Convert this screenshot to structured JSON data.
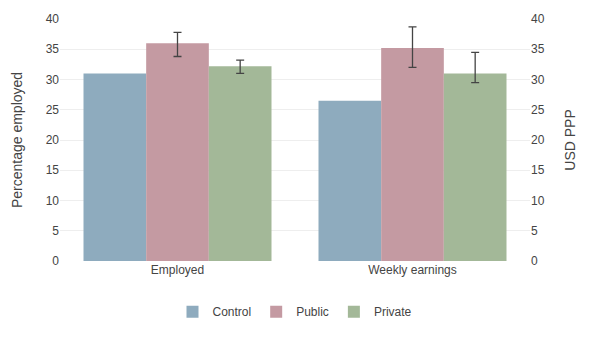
{
  "chart_data": {
    "type": "bar",
    "categories": [
      "Employed",
      "Weekly earnings"
    ],
    "series": [
      {
        "name": "Control",
        "color": "#8eabbe",
        "values": [
          31.0,
          26.5
        ]
      },
      {
        "name": "Public",
        "color": "#c49aa2",
        "values": [
          36.0,
          35.2
        ],
        "error_low": [
          2.2,
          3.2
        ],
        "error_high": [
          1.8,
          3.5
        ]
      },
      {
        "name": "Private",
        "color": "#a3b898",
        "values": [
          32.2,
          31.0
        ],
        "error_low": [
          1.2,
          1.5
        ],
        "error_high": [
          1.0,
          3.5
        ]
      }
    ],
    "ylabel": "Percentage employed",
    "y2label": "USD PPP",
    "ylim": [
      0,
      40
    ],
    "yticks": [
      0,
      5,
      10,
      15,
      20,
      25,
      30,
      35,
      40
    ],
    "y2lim": [
      0,
      40
    ],
    "y2ticks": [
      0,
      5,
      10,
      15,
      20,
      25,
      30,
      35,
      40
    ],
    "grid": true,
    "legend": "bottom"
  }
}
